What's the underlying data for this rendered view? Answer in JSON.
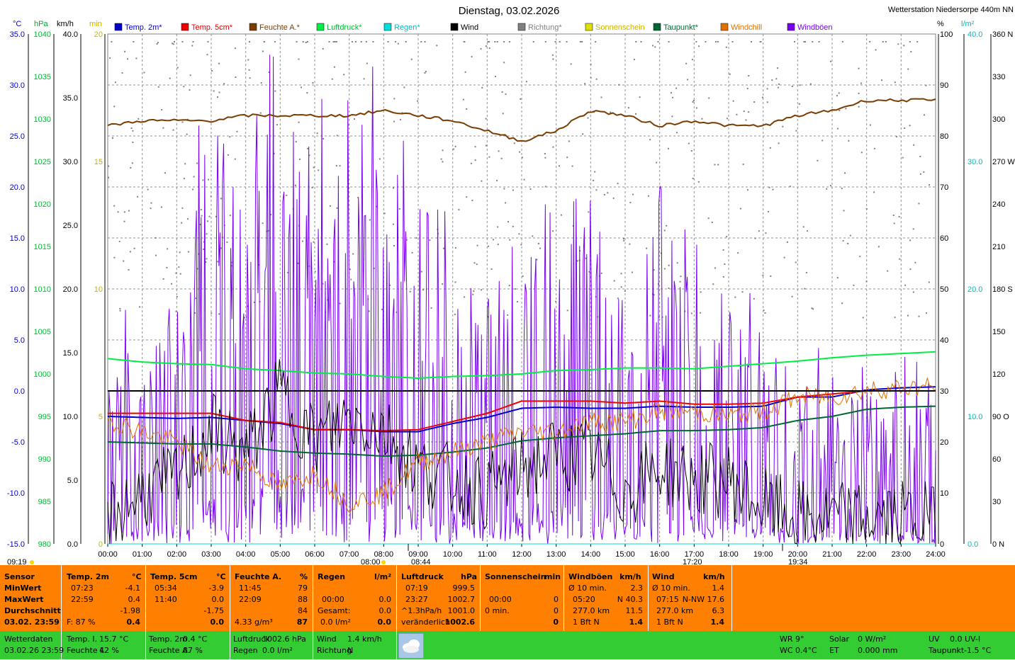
{
  "header": {
    "title": "Dienstag, 03.02.2026",
    "station": "Wetterstation Niedersorpe 440m NN"
  },
  "axis_units": {
    "temp": "°C",
    "pressure": "hPa",
    "wind": "km/h",
    "sun": "min",
    "humidity": "%",
    "rain": "l/m²"
  },
  "legend": [
    {
      "label": "Temp. 2m*",
      "color": "#0000cc"
    },
    {
      "label": "Temp. 5cm*",
      "color": "#ee0000"
    },
    {
      "label": "Feuchte A.*",
      "color": "#7a3d00"
    },
    {
      "label": "Luftdruck*",
      "color": "#00ee44"
    },
    {
      "label": "Regen*",
      "color": "#00dddd"
    },
    {
      "label": "Wind",
      "color": "#000000"
    },
    {
      "label": "Richtung*",
      "color": "#808080"
    },
    {
      "label": "Sonnenschein",
      "color": "#e0e000"
    },
    {
      "label": "Taupunkt*",
      "color": "#006633"
    },
    {
      "label": "Windchill",
      "color": "#e07000"
    },
    {
      "label": "Windböen",
      "color": "#7700ee"
    }
  ],
  "chart_data": {
    "type": "line",
    "x": [
      "00:00",
      "01:00",
      "02:00",
      "03:00",
      "04:00",
      "05:00",
      "06:00",
      "07:00",
      "08:00",
      "09:00",
      "10:00",
      "11:00",
      "12:00",
      "13:00",
      "14:00",
      "15:00",
      "16:00",
      "17:00",
      "18:00",
      "19:00",
      "20:00",
      "21:00",
      "22:00",
      "23:00",
      "24:00"
    ],
    "axes": {
      "temp_ticks": [
        "35.0",
        "30.0",
        "25.0",
        "20.0",
        "15.0",
        "10.0",
        "5.0",
        "0.0",
        "-5.0",
        "-10.0",
        "-15.0"
      ],
      "temp_range": [
        -15,
        35
      ],
      "pressure_ticks": [
        "1040",
        "1035",
        "1030",
        "1025",
        "1020",
        "1015",
        "1010",
        "1005",
        "1000",
        "995",
        "990",
        "985",
        "980"
      ],
      "pressure_range": [
        980,
        1040
      ],
      "wind_ticks": [
        "40.0",
        "35.0",
        "30.0",
        "25.0",
        "20.0",
        "15.0",
        "10.0",
        "5.0",
        "0.0"
      ],
      "wind_range": [
        0,
        40
      ],
      "sun_ticks": [
        "20",
        "15",
        "10",
        "5",
        "0"
      ],
      "sun_range": [
        0,
        20
      ],
      "humidity_ticks": [
        "100",
        "90",
        "80",
        "70",
        "60",
        "50",
        "40",
        "30",
        "20",
        "10",
        "0"
      ],
      "humidity_range": [
        0,
        100
      ],
      "rain_ticks": [
        "40.0",
        "30.0",
        "20.0",
        "10.0",
        "0.0"
      ],
      "rain_range": [
        0,
        40
      ],
      "direction_ticks": [
        "360 N",
        "330",
        "300",
        "270 W",
        "240",
        "210",
        "180 S",
        "150",
        "120",
        "90 O",
        "60",
        "30",
        "0 N"
      ],
      "direction_range": [
        0,
        360
      ]
    },
    "series": [
      {
        "name": "Temp. 2m*",
        "axis": "temp",
        "color": "#0000cc",
        "values": [
          -2.5,
          -2.6,
          -2.7,
          -2.6,
          -2.9,
          -3.2,
          -3.8,
          -3.8,
          -4.0,
          -4.0,
          -3.2,
          -2.6,
          -1.7,
          -1.6,
          -1.7,
          -1.7,
          -1.5,
          -1.6,
          -1.6,
          -1.5,
          -0.6,
          -0.6,
          0.1,
          0.3,
          0.4
        ]
      },
      {
        "name": "Temp. 5cm*",
        "axis": "temp",
        "color": "#ee0000",
        "values": [
          -2.2,
          -2.2,
          -2.2,
          -2.2,
          -2.9,
          -3.1,
          -3.8,
          -3.8,
          -3.9,
          -3.8,
          -3.0,
          -2.2,
          -1.0,
          -1.0,
          -1.0,
          -1.2,
          -1.0,
          -1.3,
          -1.3,
          -1.2,
          -0.6,
          -0.3,
          0.0,
          0.0,
          0.0
        ]
      },
      {
        "name": "Feuchte A.*",
        "axis": "humidity",
        "color": "#7a3d00",
        "values": [
          82,
          83,
          83,
          83,
          84,
          84,
          84,
          84,
          85,
          84,
          83,
          81,
          79,
          81,
          85,
          84,
          82,
          83,
          82,
          82,
          84,
          85,
          87,
          87,
          87
        ]
      },
      {
        "name": "Luftdruck*",
        "axis": "pressure",
        "color": "#00ee44",
        "values": [
          1001.8,
          1001.4,
          1001.2,
          1001.1,
          1000.6,
          1000.4,
          1000.1,
          1000.0,
          999.7,
          999.5,
          999.7,
          999.8,
          1000.0,
          1000.4,
          1000.5,
          1000.7,
          1000.7,
          1000.6,
          1000.9,
          1001.2,
          1001.5,
          1001.9,
          1002.2,
          1002.4,
          1002.6
        ]
      },
      {
        "name": "Regen*",
        "axis": "rain",
        "color": "#00dddd",
        "values": [
          0,
          0,
          0,
          0,
          0,
          0,
          0,
          0,
          0,
          0,
          0,
          0,
          0,
          0,
          0,
          0,
          0,
          0,
          0,
          0,
          0,
          0,
          0,
          0,
          0
        ]
      },
      {
        "name": "Wind",
        "axis": "wind",
        "color": "#000000",
        "values": [
          2,
          4,
          5,
          9,
          7,
          12,
          8,
          10,
          9,
          6,
          5,
          4,
          6,
          7,
          7,
          4,
          6,
          5,
          5,
          3,
          2,
          2,
          2,
          2,
          2
        ]
      },
      {
        "name": "Taupunkt*",
        "axis": "temp",
        "color": "#006633",
        "values": [
          -5.0,
          -5.1,
          -5.2,
          -5.2,
          -5.5,
          -5.9,
          -6.1,
          -6.2,
          -6.4,
          -6.3,
          -6.0,
          -5.6,
          -4.9,
          -4.6,
          -4.4,
          -4.2,
          -3.9,
          -3.9,
          -3.8,
          -3.6,
          -2.9,
          -2.5,
          -1.8,
          -1.6,
          -1.5
        ]
      },
      {
        "name": "Windchill",
        "axis": "temp",
        "color": "#e07000",
        "values": [
          -2.8,
          -4.0,
          -5.0,
          -7.5,
          -7.0,
          -9.5,
          -8.0,
          -11.0,
          -10.0,
          -7.0,
          -6.0,
          -5.0,
          -4.0,
          -4.0,
          -3.0,
          -3.0,
          -2.0,
          -2.0,
          -2.5,
          -2.0,
          -0.6,
          -0.6,
          0.1,
          0.3,
          0.4
        ]
      }
    ],
    "gusts": {
      "name": "Windböen",
      "axis": "wind",
      "color": "#7700ee",
      "max": 40.3
    },
    "direction": {
      "name": "Richtung*",
      "axis": "direction",
      "color": "#808080"
    }
  },
  "markers": {
    "sunrise_label": "08:00",
    "sunrise_marker": "08:44",
    "sunset_label": "17:20",
    "sunset_marker": "19:34",
    "left_time": "09:19"
  },
  "stats": {
    "headers": {
      "sensor": "Sensor",
      "temp2": "Temp. 2m",
      "temp2_unit": "°C",
      "temp5": "Temp. 5cm",
      "temp5_unit": "°C",
      "hum": "Feuchte A.",
      "hum_unit": "%",
      "rain": "Regen",
      "rain_unit": "l/m²",
      "press": "Luftdruck",
      "press_unit": "hPa",
      "sun": "Sonnenschein",
      "sun_unit": "min",
      "gust": "Windböen",
      "gust_unit": "km/h",
      "wind": "Wind",
      "wind_unit": "km/h"
    },
    "rows": {
      "min": "MinWert",
      "max": "MaxWert",
      "avg": "Durchschnitt",
      "date": "03.02. 23:59"
    },
    "temp2": {
      "min_t": "07:23",
      "min_v": "-4.1",
      "max_t": "22:59",
      "max_v": "0.4",
      "avg": "-1.98",
      "f": "F: 87 %",
      "cur": "0.4"
    },
    "temp5": {
      "min_t": "05:34",
      "min_v": "-3.9",
      "max_t": "11:40",
      "max_v": "0.0",
      "avg": "-1.75",
      "cur": "0.0"
    },
    "hum": {
      "min_t": "11:45",
      "min_v": "79",
      "max_t": "22:09",
      "max_v": "88",
      "avg": "84",
      "abs": "4.33 g/m³",
      "cur": "87"
    },
    "rain": {
      "t": "00:00",
      "v": "0.0",
      "gesamt": "Gesamt:",
      "gesamt_v": "0.0",
      "rate": "0.0 l/m²",
      "cur": "0.0"
    },
    "press": {
      "min_t": "07:19",
      "min_v": "999.5",
      "max_t": "23:27",
      "max_v": "1002.7",
      "trend": "^1.3hPa/h",
      "trend_v": "1001.0",
      "state": "veränderlich",
      "cur": "1002.6"
    },
    "sun": {
      "t": "00:00",
      "v": "0",
      "total": "0 min.",
      "total_v": "0",
      "cur": "0"
    },
    "gust": {
      "a": "Ø 10 min.",
      "a_v": "2.3",
      "b_t": "05:20",
      "b_v": "N 40.3",
      "c": "277.0 km",
      "c_v": "11.5",
      "d": "1 Bft N",
      "d_v": "1.4"
    },
    "wind": {
      "a": "Ø 10 min.",
      "a_v": "1.4",
      "b_t": "07:15",
      "b_v": "N-NW 17.6",
      "c": "277.0 km",
      "c_v": "6.3",
      "d": "1 Bft N",
      "d_v": "1.4"
    }
  },
  "current": {
    "wd_label": "Wetterdaten",
    "wd_date": "03.02.26 23:59",
    "tempi_l": "Temp. I.",
    "tempi_v": "15.7 °C",
    "feuchtei_l": "Feuchte I.",
    "feuchtei_v": "42 %",
    "temp2_l": "Temp. 2m",
    "temp2_v": "0.4 °C",
    "feuchtea_l": "Feuchte A.",
    "feuchtea_v": "87 %",
    "press_l": "Luftdruck",
    "press_v": "1002.6 hPa",
    "regen_l": "Regen",
    "regen_v": "0.0 l/m²",
    "wind_l": "Wind",
    "wind_v": "1.4 km/h",
    "richtung_l": "Richtung",
    "richtung_v": "N",
    "wr": "WR 9°",
    "wc": "WC 0.4°C",
    "solar_l": "Solar",
    "solar_v": "0 W/m²",
    "et_l": "ET",
    "et_v": "0.000 mm",
    "uv_l": "UV",
    "uv_v": "0.0 UV-I",
    "taupunkt_l": "Taupunkt",
    "taupunkt_v": "-1.5 °C"
  }
}
